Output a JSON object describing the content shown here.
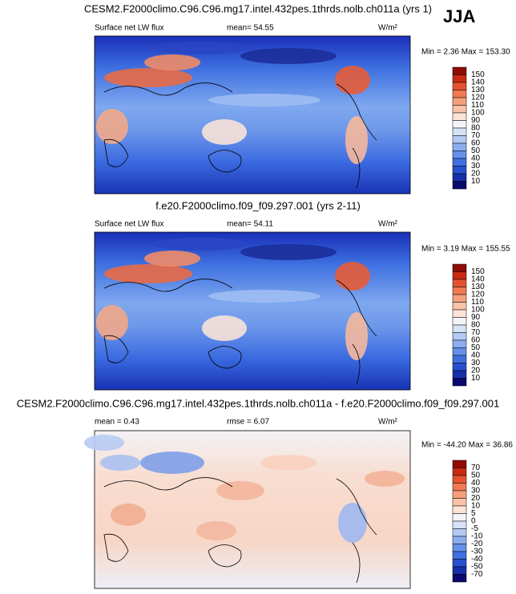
{
  "season": "JJA",
  "panels": [
    {
      "title": "CESM2.F2000climo.C96.C96.mg17.intel.432pes.1thrds.nolb.ch011a (yrs 1)",
      "variable": "Surface net LW flux",
      "mean": "mean=  54.55",
      "units": "W/m²",
      "stats": "Min =   2.36 Max = 153.30",
      "colorbar": [
        "150",
        "140",
        "130",
        "120",
        "110",
        "100",
        "90",
        "80",
        "70",
        "60",
        "50",
        "40",
        "30",
        "20",
        "10"
      ]
    },
    {
      "title": "f.e20.F2000climo.f09_f09.297.001 (yrs 2-11)",
      "variable": "Surface net LW flux",
      "mean": "mean=  54.11",
      "units": "W/m²",
      "stats": "Min =   3.19 Max = 155.55",
      "colorbar": [
        "150",
        "140",
        "130",
        "120",
        "110",
        "100",
        "90",
        "80",
        "70",
        "60",
        "50",
        "40",
        "30",
        "20",
        "10"
      ]
    },
    {
      "title": "CESM2.F2000climo.C96.C96.mg17.intel.432pes.1thrds.nolb.ch011a - f.e20.F2000climo.f09_f09.297.001",
      "mean": "mean =   0.43",
      "rmse": "rmse =   6.07",
      "units": "W/m²",
      "stats": "Min = -44.20 Max =  36.86",
      "colorbar": [
        "70",
        "50",
        "40",
        "30",
        "20",
        "10",
        "5",
        "0",
        "-5",
        "-10",
        "-20",
        "-30",
        "-40",
        "-50",
        "-70"
      ]
    }
  ]
}
